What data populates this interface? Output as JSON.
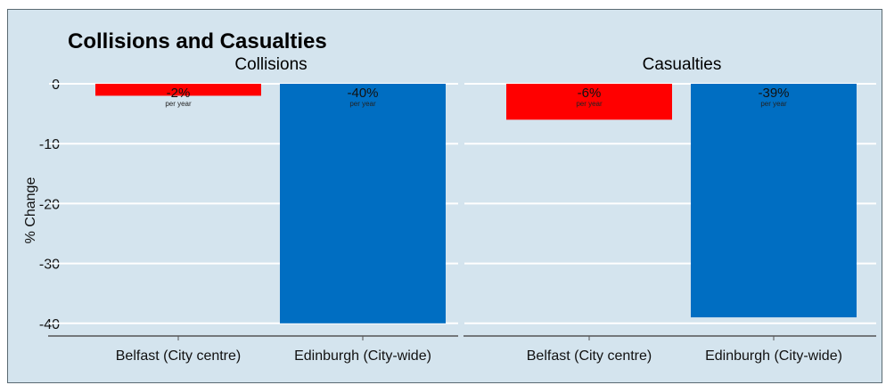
{
  "chart_data": {
    "type": "bar",
    "title": "Collisions and Casualties",
    "ylabel": "% Change",
    "ylim": [
      -42,
      1
    ],
    "yticks": [
      0,
      -10,
      -20,
      -30,
      -40
    ],
    "grid": true,
    "categories": [
      "Belfast (City centre)",
      "Edinburgh (City-wide)"
    ],
    "colors": [
      "#ff0000",
      "#006ec2"
    ],
    "sublabel": "per year",
    "panels": [
      {
        "name": "Collisions",
        "values": [
          -2,
          -40
        ],
        "labels": [
          "-2%",
          "-40%"
        ]
      },
      {
        "name": "Casualties",
        "values": [
          -6,
          -39
        ],
        "labels": [
          "-6%",
          "-39%"
        ]
      }
    ]
  }
}
